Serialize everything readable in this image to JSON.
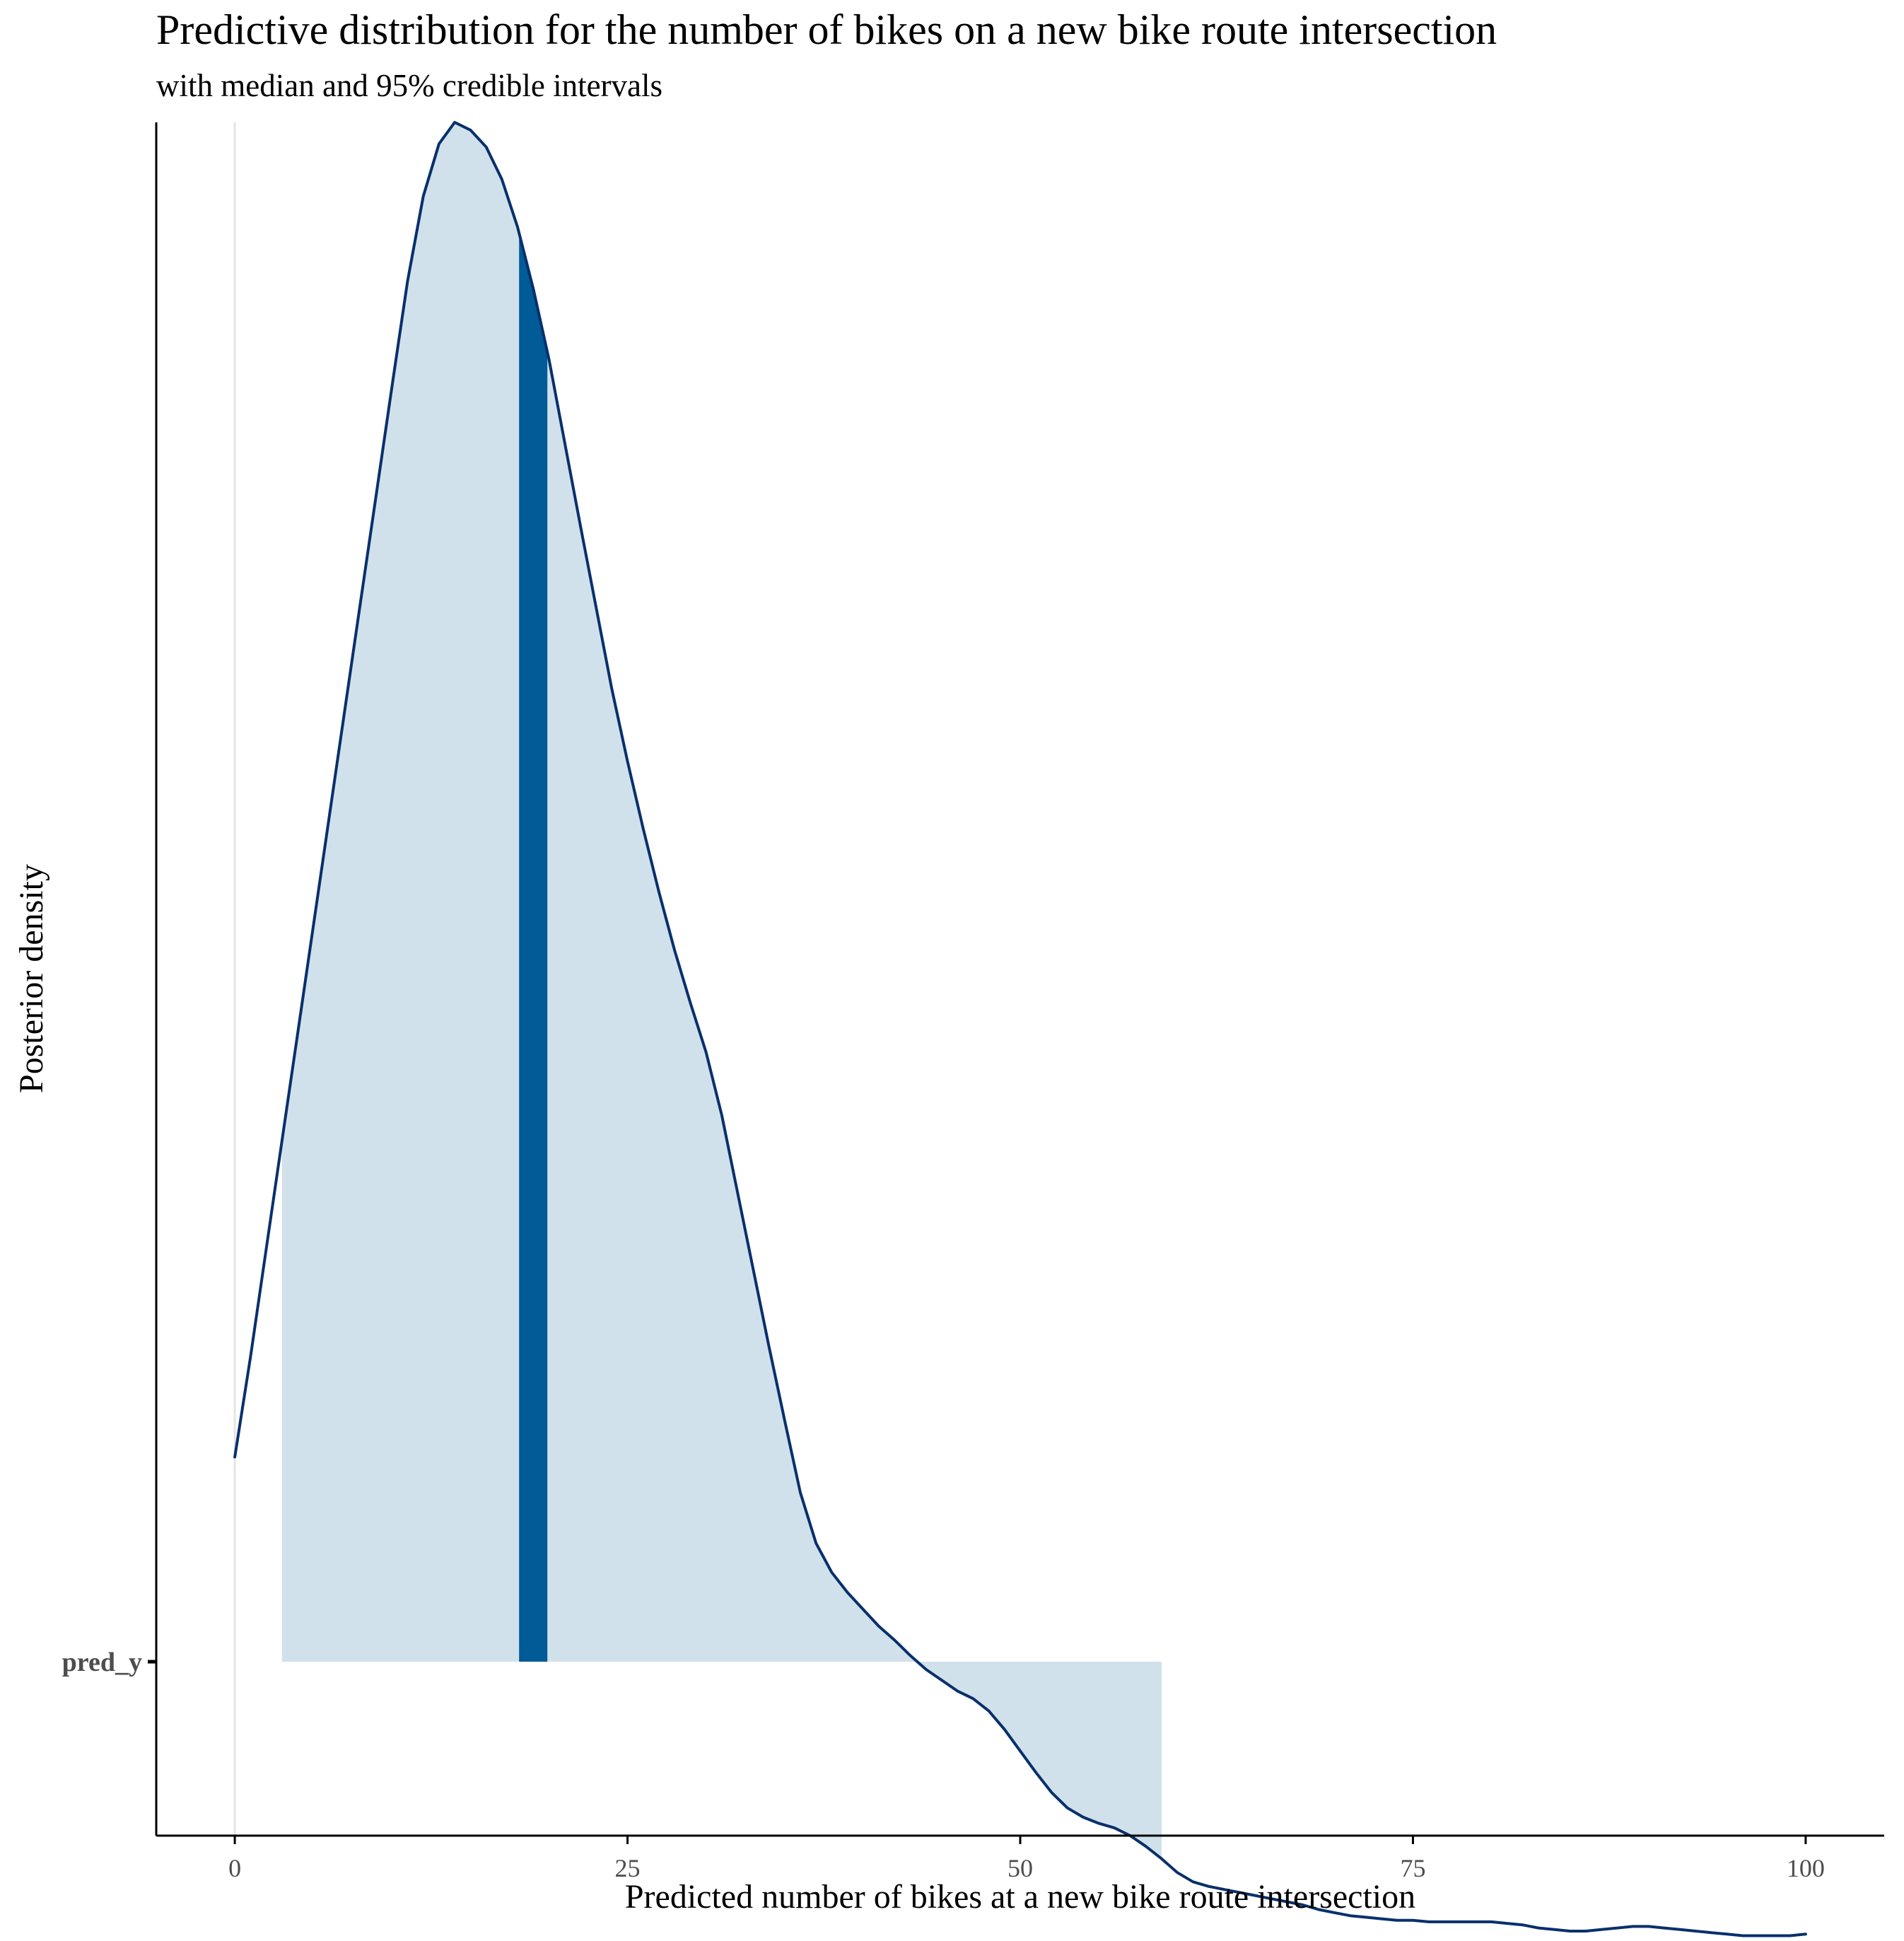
{
  "chart_data": {
    "type": "area",
    "title": "Predictive distribution for the number of bikes on a new bike route intersection",
    "subtitle": "with median and 95% credible intervals",
    "xlabel": "Predicted number of bikes at a new bike route intersection",
    "ylabel": "Posterior density",
    "xlim": [
      -5,
      105
    ],
    "ylim": [
      0,
      1
    ],
    "x_ticks": [
      0,
      25,
      50,
      75,
      100
    ],
    "x_tick_labels": [
      "0",
      "25",
      "50",
      "75",
      "100"
    ],
    "y_tick_labels": [
      "pred_y"
    ],
    "vline_x": 0,
    "grid": false,
    "legend": "none",
    "series": [
      {
        "label": "pred_y",
        "x": [
          0,
          1,
          2,
          3,
          4,
          5,
          6,
          7,
          8,
          9,
          10,
          11,
          12,
          13,
          14,
          15,
          16,
          17,
          18,
          19,
          20,
          21,
          22,
          23,
          24,
          25,
          26,
          27,
          28,
          29,
          30,
          31,
          32,
          33,
          34,
          35,
          36,
          37,
          38,
          39,
          40,
          41,
          42,
          43,
          44,
          45,
          46,
          47,
          48,
          49,
          50,
          51,
          52,
          53,
          54,
          55,
          56,
          57,
          58,
          59,
          60,
          61,
          62,
          63,
          64,
          65,
          66,
          67,
          68,
          69,
          70,
          71,
          72,
          73,
          74,
          75,
          76,
          77,
          78,
          79,
          80,
          81,
          82,
          83,
          84,
          85,
          86,
          87,
          88,
          89,
          90,
          91,
          92,
          93,
          94,
          95,
          96,
          97,
          98,
          99,
          100
        ],
        "density": [
          0.133,
          0.198,
          0.268,
          0.338,
          0.408,
          0.478,
          0.548,
          0.618,
          0.688,
          0.758,
          0.828,
          0.897,
          0.952,
          0.986,
          1.0,
          0.995,
          0.984,
          0.963,
          0.932,
          0.892,
          0.846,
          0.792,
          0.738,
          0.685,
          0.632,
          0.585,
          0.541,
          0.5,
          0.462,
          0.428,
          0.396,
          0.355,
          0.305,
          0.255,
          0.205,
          0.157,
          0.11,
          0.077,
          0.058,
          0.045,
          0.034,
          0.023,
          0.014,
          0.004,
          -0.005,
          -0.012,
          -0.019,
          -0.024,
          -0.032,
          -0.044,
          -0.058,
          -0.072,
          -0.085,
          -0.095,
          -0.101,
          -0.105,
          -0.108,
          -0.113,
          -0.12,
          -0.128,
          -0.137,
          -0.143,
          -0.146,
          -0.148,
          -0.15,
          -0.152,
          -0.154,
          -0.156,
          -0.158,
          -0.161,
          -0.163,
          -0.165,
          -0.166,
          -0.167,
          -0.168,
          -0.168,
          -0.169,
          -0.169,
          -0.169,
          -0.169,
          -0.169,
          -0.17,
          -0.171,
          -0.173,
          -0.174,
          -0.175,
          -0.175,
          -0.174,
          -0.173,
          -0.172,
          -0.172,
          -0.173,
          -0.174,
          -0.175,
          -0.176,
          -0.177,
          -0.178,
          -0.178,
          -0.178,
          -0.178,
          -0.177
        ]
      }
    ],
    "interval": {
      "label": "95% credible interval",
      "low": 3,
      "high": 59
    },
    "median": {
      "label": "median",
      "low": 18.1,
      "high": 19.9
    },
    "colors": {
      "curve": "#08306b",
      "interval_fill": "#d1e1ec",
      "median_fill": "#005b96",
      "axis": "#000000",
      "tick_text": "#4d4d4d",
      "zero_line": "#e5e5e5"
    }
  }
}
